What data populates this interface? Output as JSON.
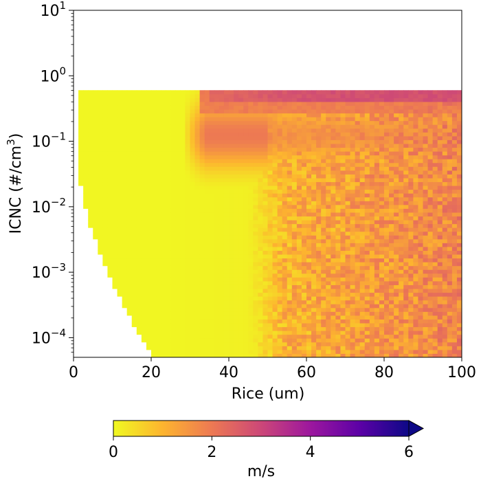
{
  "chart_data": {
    "type": "heatmap",
    "title": "",
    "xlabel": "Rice (um)",
    "ylabel_base": "ICNC (#/cm",
    "ylabel_sup": "3",
    "ylabel_tail": ")",
    "xlim": [
      0,
      100
    ],
    "ylim_log10": [
      -4.3,
      1
    ],
    "x_ticks": [
      {
        "value": 0,
        "label": "0"
      },
      {
        "value": 20,
        "label": "20"
      },
      {
        "value": 40,
        "label": "40"
      },
      {
        "value": 60,
        "label": "60"
      },
      {
        "value": 80,
        "label": "80"
      },
      {
        "value": 100,
        "label": "100"
      }
    ],
    "y_ticks": [
      {
        "exp": 1,
        "base": "10",
        "sup": "1"
      },
      {
        "exp": 0,
        "base": "10",
        "sup": "0"
      },
      {
        "exp": -1,
        "base": "10",
        "sup": "−1"
      },
      {
        "exp": -2,
        "base": "10",
        "sup": "−2"
      },
      {
        "exp": -3,
        "base": "10",
        "sup": "−3"
      },
      {
        "exp": -4,
        "base": "10",
        "sup": "−4"
      }
    ],
    "grid": false,
    "colormap": "plasma_r",
    "value_range": [
      0,
      6
    ],
    "data_top_log10": -0.22,
    "empty_region_lower_left": "no data where ICNC is low and Rice is small",
    "regions": [
      {
        "description": "small radius, all concentrations",
        "value_approx": 0.1
      },
      {
        "description": "Rice 30-45 um, ICNC 0.05-0.5",
        "value_approx": 2.0
      },
      {
        "description": "top row ICNC ~0.5, Rice > 30 um",
        "value_approx": 2.6
      },
      {
        "description": "Rice > 50 um, noisy",
        "value_approx": 1.6
      }
    ],
    "colorbar": {
      "label": "m/s",
      "ticks": [
        {
          "value": 0,
          "label": "0"
        },
        {
          "value": 2,
          "label": "2"
        },
        {
          "value": 4,
          "label": "4"
        },
        {
          "value": 6,
          "label": "6"
        }
      ],
      "extend": "max",
      "colors": [
        "#f0f921",
        "#fdb42f",
        "#ed7953",
        "#cc4778",
        "#9c179e",
        "#5c01a6",
        "#0d0887"
      ]
    }
  }
}
